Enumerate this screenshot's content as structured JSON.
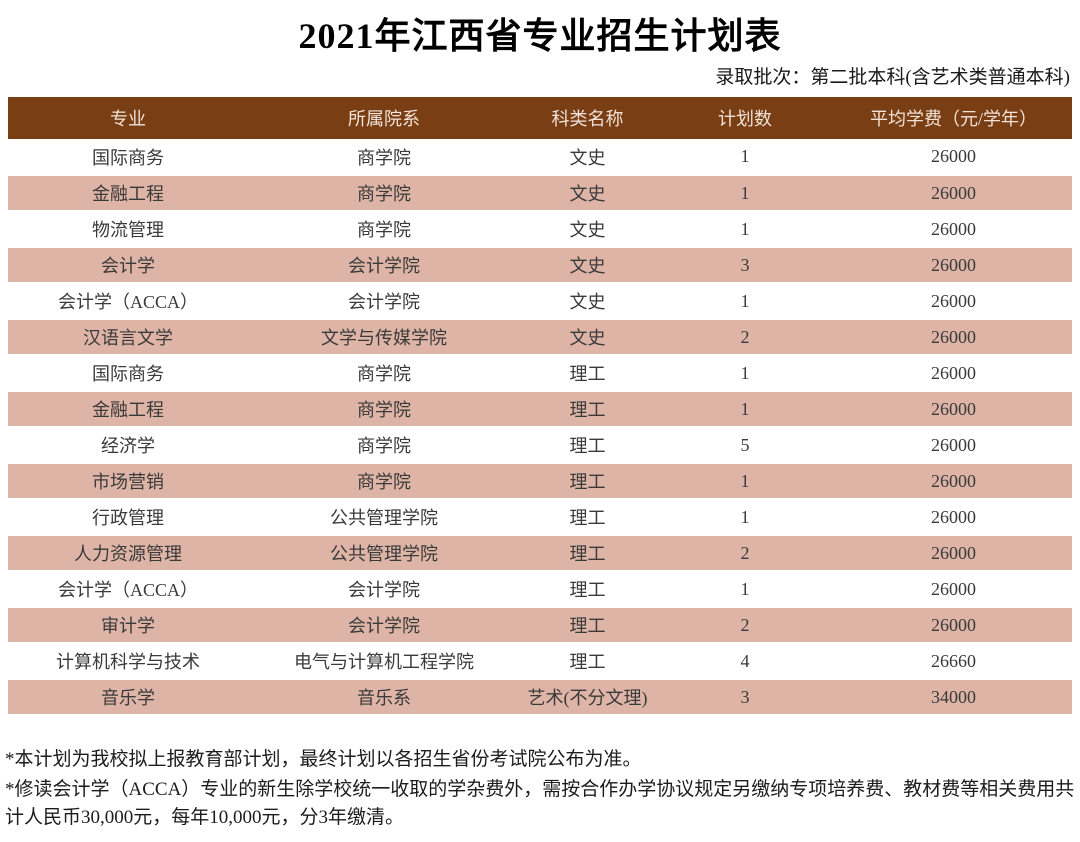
{
  "title": "2021年江西省专业招生计划表",
  "subtitle": "录取批次：第二批本科(含艺术类普通本科)",
  "table": {
    "columns": [
      "专业",
      "所属院系",
      "科类名称",
      "计划数",
      "平均学费（元/学年）"
    ],
    "rows": [
      [
        "国际商务",
        "商学院",
        "文史",
        "1",
        "26000"
      ],
      [
        "金融工程",
        "商学院",
        "文史",
        "1",
        "26000"
      ],
      [
        "物流管理",
        "商学院",
        "文史",
        "1",
        "26000"
      ],
      [
        "会计学",
        "会计学院",
        "文史",
        "3",
        "26000"
      ],
      [
        "会计学（ACCA）",
        "会计学院",
        "文史",
        "1",
        "26000"
      ],
      [
        "汉语言文学",
        "文学与传媒学院",
        "文史",
        "2",
        "26000"
      ],
      [
        "国际商务",
        "商学院",
        "理工",
        "1",
        "26000"
      ],
      [
        "金融工程",
        "商学院",
        "理工",
        "1",
        "26000"
      ],
      [
        "经济学",
        "商学院",
        "理工",
        "5",
        "26000"
      ],
      [
        "市场营销",
        "商学院",
        "理工",
        "1",
        "26000"
      ],
      [
        "行政管理",
        "公共管理学院",
        "理工",
        "1",
        "26000"
      ],
      [
        "人力资源管理",
        "公共管理学院",
        "理工",
        "2",
        "26000"
      ],
      [
        "会计学（ACCA）",
        "会计学院",
        "理工",
        "1",
        "26000"
      ],
      [
        "审计学",
        "会计学院",
        "理工",
        "2",
        "26000"
      ],
      [
        "计算机科学与技术",
        "电气与计算机工程学院",
        "理工",
        "4",
        "26660"
      ],
      [
        "音乐学",
        "音乐系",
        "艺术(不分文理)",
        "3",
        "34000"
      ]
    ]
  },
  "notes": [
    "*本计划为我校拟上报教育部计划，最终计划以各招生省份考试院公布为准。",
    "*修读会计学（ACCA）专业的新生除学校统一收取的学杂费外，需按合作办学协议规定另缴纳专项培养费、教材费等相关费用共计人民币30,000元，每年10,000元，分3年缴清。"
  ],
  "colors": {
    "header_bg": "#7A3E14",
    "header_text": "#F2E2D8",
    "row_alt_bg": "#DDB4A6",
    "body_text": "#3A3A3A"
  }
}
